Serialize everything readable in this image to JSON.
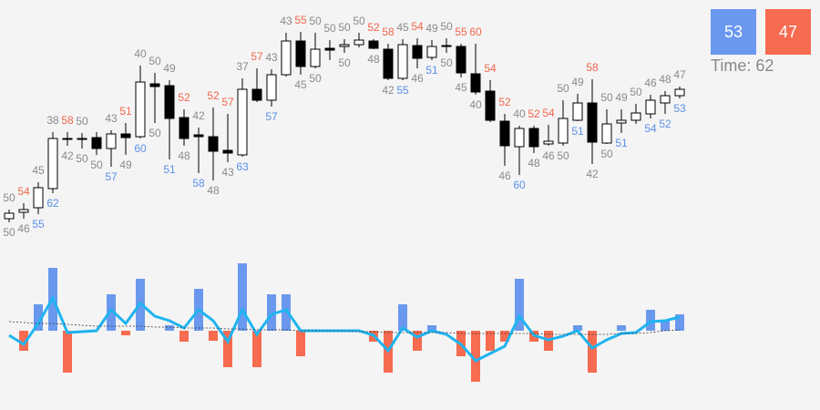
{
  "chart_data": {
    "type": "candlestick",
    "ylim": [
      0,
      260
    ],
    "open": [
      30,
      37,
      42,
      63,
      118,
      118,
      119,
      107,
      123,
      120,
      178,
      176,
      141,
      122,
      120,
      105,
      100,
      172,
      160,
      188,
      225,
      197,
      217,
      219,
      221,
      225,
      216,
      184,
      220,
      207,
      220,
      219,
      189,
      170,
      137,
      109,
      129,
      112,
      113,
      138,
      157,
      113,
      135,
      138,
      145,
      157,
      165
    ],
    "high": [
      40,
      47,
      70,
      125,
      125,
      124,
      125,
      127,
      135,
      198,
      190,
      182,
      150,
      130,
      152,
      145,
      184,
      195,
      194,
      234,
      235,
      234,
      226,
      227,
      234,
      227,
      222,
      227,
      228,
      226,
      228,
      222,
      222,
      182,
      145,
      132,
      132,
      133,
      160,
      167,
      183,
      150,
      150,
      156,
      166,
      170,
      175
    ],
    "low": [
      26,
      30,
      35,
      58,
      110,
      107,
      100,
      87,
      100,
      118,
      135,
      95,
      110,
      80,
      72,
      92,
      98,
      158,
      153,
      186,
      188,
      195,
      204,
      212,
      218,
      216,
      182,
      182,
      195,
      204,
      212,
      185,
      166,
      136,
      88,
      78,
      102,
      110,
      110,
      137,
      90,
      112,
      124,
      134,
      140,
      145,
      162
    ],
    "close": [
      36,
      40,
      64,
      118,
      118,
      118,
      107,
      123,
      119,
      180,
      175,
      140,
      118,
      120,
      104,
      102,
      172,
      160,
      188,
      225,
      197,
      216,
      215,
      221,
      226,
      217,
      184,
      221,
      206,
      219,
      220,
      190,
      169,
      138,
      110,
      129,
      109,
      115,
      140,
      157,
      114,
      134,
      138,
      146,
      160,
      165,
      172
    ],
    "up_color": "#ffffff",
    "down_color": "#000000",
    "upper_labels": {
      "color": "#8a8a8a",
      "values": [
        50,
        null,
        45,
        38,
        null,
        50,
        null,
        43,
        null,
        40,
        50,
        49,
        null,
        42,
        null,
        null,
        37,
        null,
        43,
        43,
        null,
        50,
        50,
        50,
        50,
        null,
        null,
        45,
        null,
        49,
        50,
        null,
        null,
        null,
        null,
        40,
        null,
        null,
        50,
        49,
        null,
        50,
        49,
        50,
        46,
        48,
        47
      ]
    },
    "upper_highlight_labels": {
      "color": "#f0674e",
      "values": [
        null,
        54,
        null,
        null,
        58,
        null,
        null,
        null,
        51,
        null,
        null,
        null,
        52,
        null,
        52,
        57,
        null,
        57,
        null,
        null,
        55,
        null,
        null,
        null,
        null,
        52,
        58,
        null,
        54,
        null,
        null,
        55,
        60,
        54,
        52,
        null,
        52,
        54,
        null,
        null,
        58,
        null,
        null,
        null,
        null,
        null,
        null
      ]
    },
    "lower_labels": {
      "color": "#8a8a8a",
      "values": [
        50,
        46,
        null,
        null,
        42,
        50,
        50,
        null,
        49,
        null,
        50,
        null,
        48,
        null,
        48,
        43,
        null,
        null,
        null,
        null,
        45,
        50,
        null,
        50,
        null,
        48,
        42,
        null,
        46,
        null,
        50,
        45,
        40,
        null,
        46,
        null,
        48,
        46,
        50,
        null,
        42,
        50,
        null,
        null,
        null,
        null,
        null
      ]
    },
    "lower_highlight_labels": {
      "color": "#5b8fe8",
      "values": [
        null,
        null,
        55,
        62,
        null,
        null,
        null,
        57,
        null,
        60,
        null,
        51,
        null,
        58,
        null,
        null,
        63,
        null,
        57,
        null,
        null,
        null,
        null,
        null,
        null,
        null,
        null,
        55,
        null,
        51,
        null,
        null,
        null,
        null,
        null,
        60,
        null,
        null,
        null,
        51,
        null,
        null,
        51,
        null,
        54,
        52,
        53
      ]
    },
    "lower_panel": {
      "type": "bar",
      "ylim": [
        -80,
        80
      ],
      "values": [
        0,
        -22,
        29,
        69,
        -46,
        0,
        0,
        40,
        -5,
        57,
        0,
        6,
        -12,
        46,
        -11,
        -40,
        74,
        -40,
        40,
        40,
        -28,
        0,
        0,
        0,
        0,
        -12,
        -46,
        29,
        -22,
        6,
        0,
        -28,
        -56,
        -22,
        -12,
        57,
        -12,
        -22,
        0,
        6,
        -46,
        0,
        6,
        0,
        23,
        11,
        18
      ],
      "up_color": "#6a98ef",
      "down_color": "#f76b50",
      "series": [
        {
          "color": "#1eb4f0",
          "style": "solid",
          "values": [
            -5,
            -15,
            8,
            36,
            -2,
            -1,
            0,
            23,
            8,
            30,
            16,
            11,
            3,
            23,
            11,
            -12,
            23,
            -4,
            18,
            23,
            0,
            0,
            0,
            0,
            0,
            -5,
            -22,
            3,
            -7,
            0,
            -4,
            -15,
            -33,
            -25,
            -17,
            16,
            -5,
            -10,
            -6,
            0,
            -19,
            -10,
            -3,
            -2,
            10,
            11,
            15
          ]
        },
        {
          "color": "#333333",
          "style": "dashed",
          "values": [
            10,
            9,
            8,
            8,
            7,
            6,
            5,
            5,
            5,
            5,
            4,
            4,
            3,
            3,
            3,
            2,
            2,
            1,
            1,
            1,
            0,
            0,
            0,
            0,
            -1,
            -1,
            -2,
            -2,
            -2,
            -2,
            -2,
            -3,
            -3,
            -3,
            -3,
            -3,
            -3,
            -4,
            -4,
            -4,
            -4,
            -4,
            -3,
            -3,
            -2,
            0,
            1
          ]
        }
      ]
    },
    "scoreboard": {
      "up": {
        "value": 53,
        "color": "#6a98ef"
      },
      "down": {
        "value": 47,
        "color": "#f76b50"
      },
      "time": "Time: 62"
    }
  }
}
